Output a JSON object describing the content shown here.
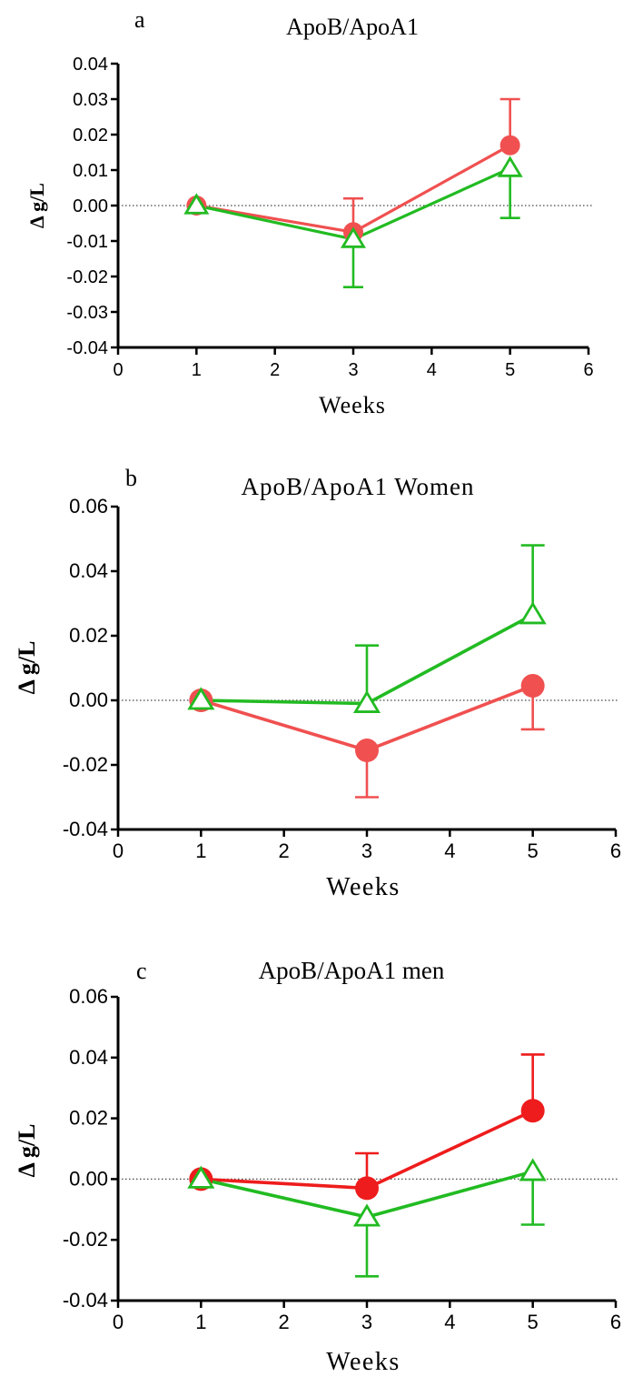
{
  "chart_data": [
    {
      "type": "line",
      "panel_label": "a",
      "title": "ApoB/ApoA1",
      "xlabel": "Weeks",
      "ylabel": "Δ g/L",
      "xlim": [
        0,
        6
      ],
      "ylim": [
        -0.04,
        0.04
      ],
      "x_ticks": [
        "0",
        "1",
        "2",
        "3",
        "4",
        "5",
        "6"
      ],
      "y_ticks": [
        "-0.04",
        "-0.03",
        "-0.02",
        "-0.01",
        "0.00",
        "0.01",
        "0.02",
        "0.03",
        "0.04"
      ],
      "reference_line_y": 0,
      "x": [
        1,
        3,
        5
      ],
      "series": [
        {
          "marker": "circle",
          "color": "#f05050",
          "values": [
            0.0,
            -0.0075,
            0.017
          ],
          "error_plus": [
            0,
            0.0095,
            0.013
          ],
          "error_minus": [
            0,
            0,
            0
          ]
        },
        {
          "marker": "triangle-open",
          "color": "#22bb22",
          "values": [
            0.0,
            -0.0095,
            0.0105
          ],
          "error_plus": [
            0,
            0,
            0
          ],
          "error_minus": [
            0,
            0.0135,
            0.014
          ]
        }
      ]
    },
    {
      "type": "line",
      "panel_label": "b",
      "title": "ApoB/ApoA1 Women",
      "xlabel": "Weeks",
      "ylabel": "Δ g/L",
      "xlim": [
        0,
        6
      ],
      "ylim": [
        -0.04,
        0.06
      ],
      "x_ticks": [
        "0",
        "1",
        "2",
        "3",
        "4",
        "5",
        "6"
      ],
      "y_ticks": [
        "-0.04",
        "-0.02",
        "0.00",
        "0.02",
        "0.04",
        "0.06"
      ],
      "reference_line_y": 0,
      "x": [
        1,
        3,
        5
      ],
      "series": [
        {
          "marker": "circle",
          "color": "#f05050",
          "values": [
            0.0,
            -0.0155,
            0.0045
          ],
          "error_plus": [
            0,
            0,
            0
          ],
          "error_minus": [
            0,
            0.0145,
            0.0135
          ]
        },
        {
          "marker": "triangle-open",
          "color": "#22bb22",
          "values": [
            0.0,
            -0.001,
            0.0265
          ],
          "error_plus": [
            0,
            0.018,
            0.0215
          ],
          "error_minus": [
            0,
            0,
            0
          ]
        }
      ]
    },
    {
      "type": "line",
      "panel_label": "c",
      "title": "ApoB/ApoA1 men",
      "xlabel": "Weeks",
      "ylabel": "Δ g/L",
      "xlim": [
        0,
        6
      ],
      "ylim": [
        -0.04,
        0.06
      ],
      "x_ticks": [
        "0",
        "1",
        "2",
        "3",
        "4",
        "5",
        "6"
      ],
      "y_ticks": [
        "-0.04",
        "-0.02",
        "0.00",
        "0.02",
        "0.04",
        "0.06"
      ],
      "reference_line_y": 0,
      "x": [
        1,
        3,
        5
      ],
      "series": [
        {
          "marker": "circle",
          "color": "#ee1c1c",
          "values": [
            0.0,
            -0.003,
            0.0225
          ],
          "error_plus": [
            0,
            0.0115,
            0.0185
          ],
          "error_minus": [
            0,
            0,
            0
          ]
        },
        {
          "marker": "triangle-open",
          "color": "#22bb22",
          "values": [
            0.0,
            -0.0125,
            0.0025
          ],
          "error_plus": [
            0,
            0,
            0
          ],
          "error_minus": [
            0,
            0.0195,
            0.0175
          ]
        }
      ]
    }
  ]
}
